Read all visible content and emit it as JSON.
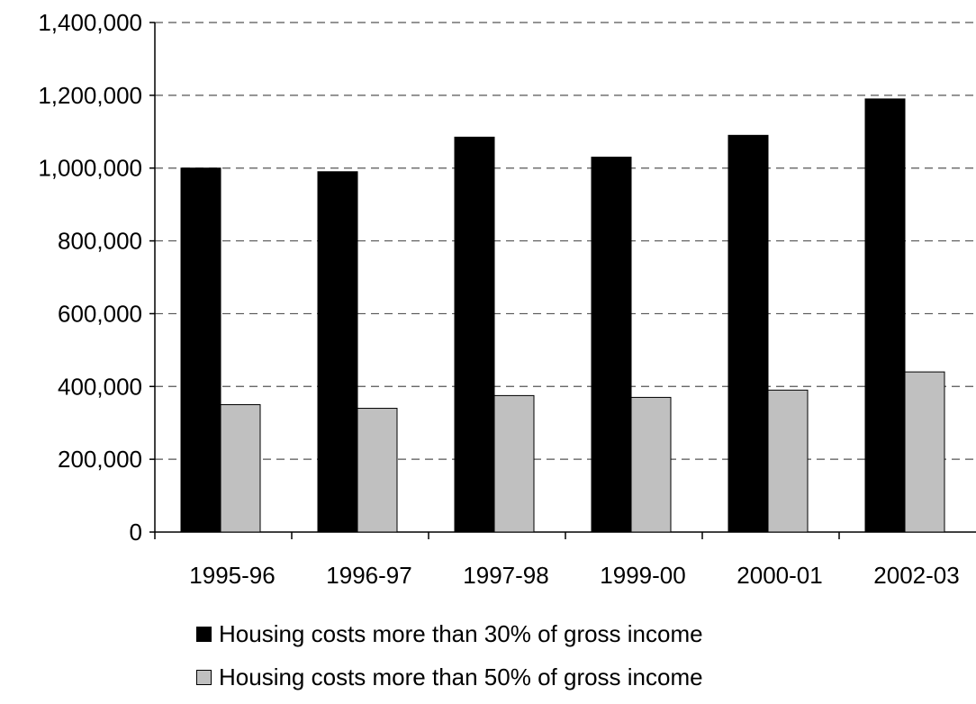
{
  "chart_data": {
    "type": "bar",
    "title": "",
    "xlabel": "",
    "ylabel": "",
    "ylim": [
      0,
      1400000
    ],
    "y_ticks": [
      0,
      200000,
      400000,
      600000,
      800000,
      1000000,
      1200000,
      1400000
    ],
    "y_tick_labels": [
      "0",
      "200,000",
      "400,000",
      "600,000",
      "800,000",
      "1,000,000",
      "1,200,000",
      "1,400,000"
    ],
    "grid": "horizontal dashed",
    "legend_position": "bottom",
    "categories": [
      "1995-96",
      "1996-97",
      "1997-98",
      "1999-00",
      "2000-01",
      "2002-03"
    ],
    "series": [
      {
        "name": "Housing costs more than 30% of gross income",
        "color": "#000000",
        "values": [
          1000000,
          990000,
          1085000,
          1030000,
          1090000,
          1190000
        ]
      },
      {
        "name": "Housing costs more than 50% of gross income",
        "color": "#c0c0c0",
        "values": [
          350000,
          340000,
          375000,
          370000,
          390000,
          440000
        ]
      }
    ]
  }
}
